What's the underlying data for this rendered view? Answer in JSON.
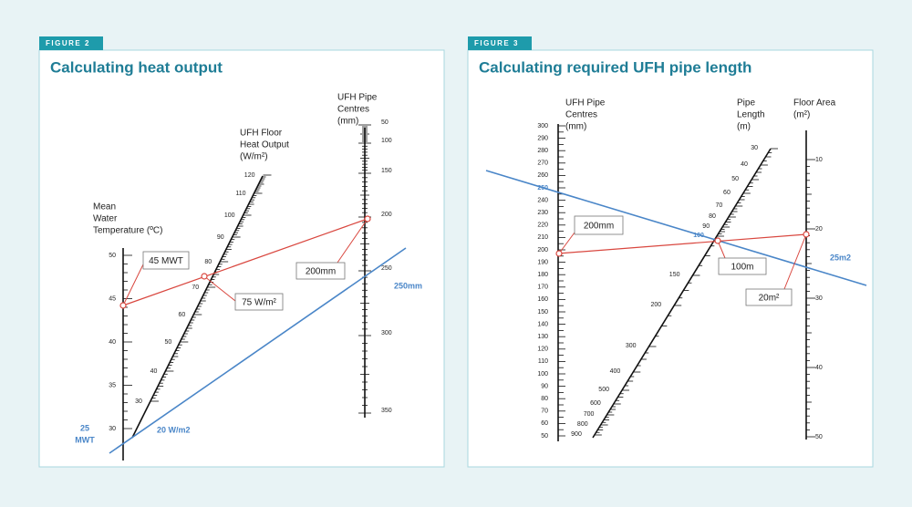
{
  "figures": [
    {
      "tag": "FIGURE 2",
      "title": "Calculating heat output",
      "scales": [
        {
          "heading": [
            "Mean",
            "Water",
            "Temperature (ºC)"
          ],
          "ticks": [
            50,
            45,
            40,
            35,
            30
          ]
        },
        {
          "heading": [
            "UFH Floor",
            "Heat Output",
            "(W/m²)"
          ],
          "ticks": [
            120,
            110,
            100,
            90,
            80,
            70,
            60,
            50,
            40,
            30
          ]
        },
        {
          "heading": [
            "UFH Pipe",
            "Centres",
            "(mm)"
          ],
          "ticks": [
            50,
            100,
            150,
            200,
            250,
            300,
            350
          ]
        }
      ],
      "callouts": [
        "45 MWT",
        "75 W/m²",
        "200mm"
      ],
      "notes": [
        "250mm",
        "20 W/m2",
        "25",
        "MWT"
      ]
    },
    {
      "tag": "FIGURE 3",
      "title": "Calculating required UFH pipe length",
      "scales": [
        {
          "heading": [
            "UFH Pipe",
            "Centres",
            "(mm)"
          ],
          "ticks": [
            300,
            290,
            280,
            270,
            260,
            250,
            240,
            230,
            220,
            210,
            200,
            190,
            180,
            170,
            160,
            150,
            140,
            130,
            120,
            110,
            100,
            90,
            80,
            70,
            60,
            50
          ]
        },
        {
          "heading": [
            "Pipe",
            "Length",
            "(m)"
          ],
          "ticks": [
            30,
            40,
            50,
            60,
            70,
            80,
            90,
            100,
            150,
            200,
            300,
            400,
            500,
            600,
            700,
            800,
            900
          ]
        },
        {
          "heading": [
            "Floor Area",
            "(m²)"
          ],
          "ticks": [
            10,
            20,
            30,
            40,
            50
          ]
        }
      ],
      "callouts": [
        "200mm",
        "100m",
        "20m²"
      ],
      "notes": [
        "25m2"
      ]
    }
  ]
}
